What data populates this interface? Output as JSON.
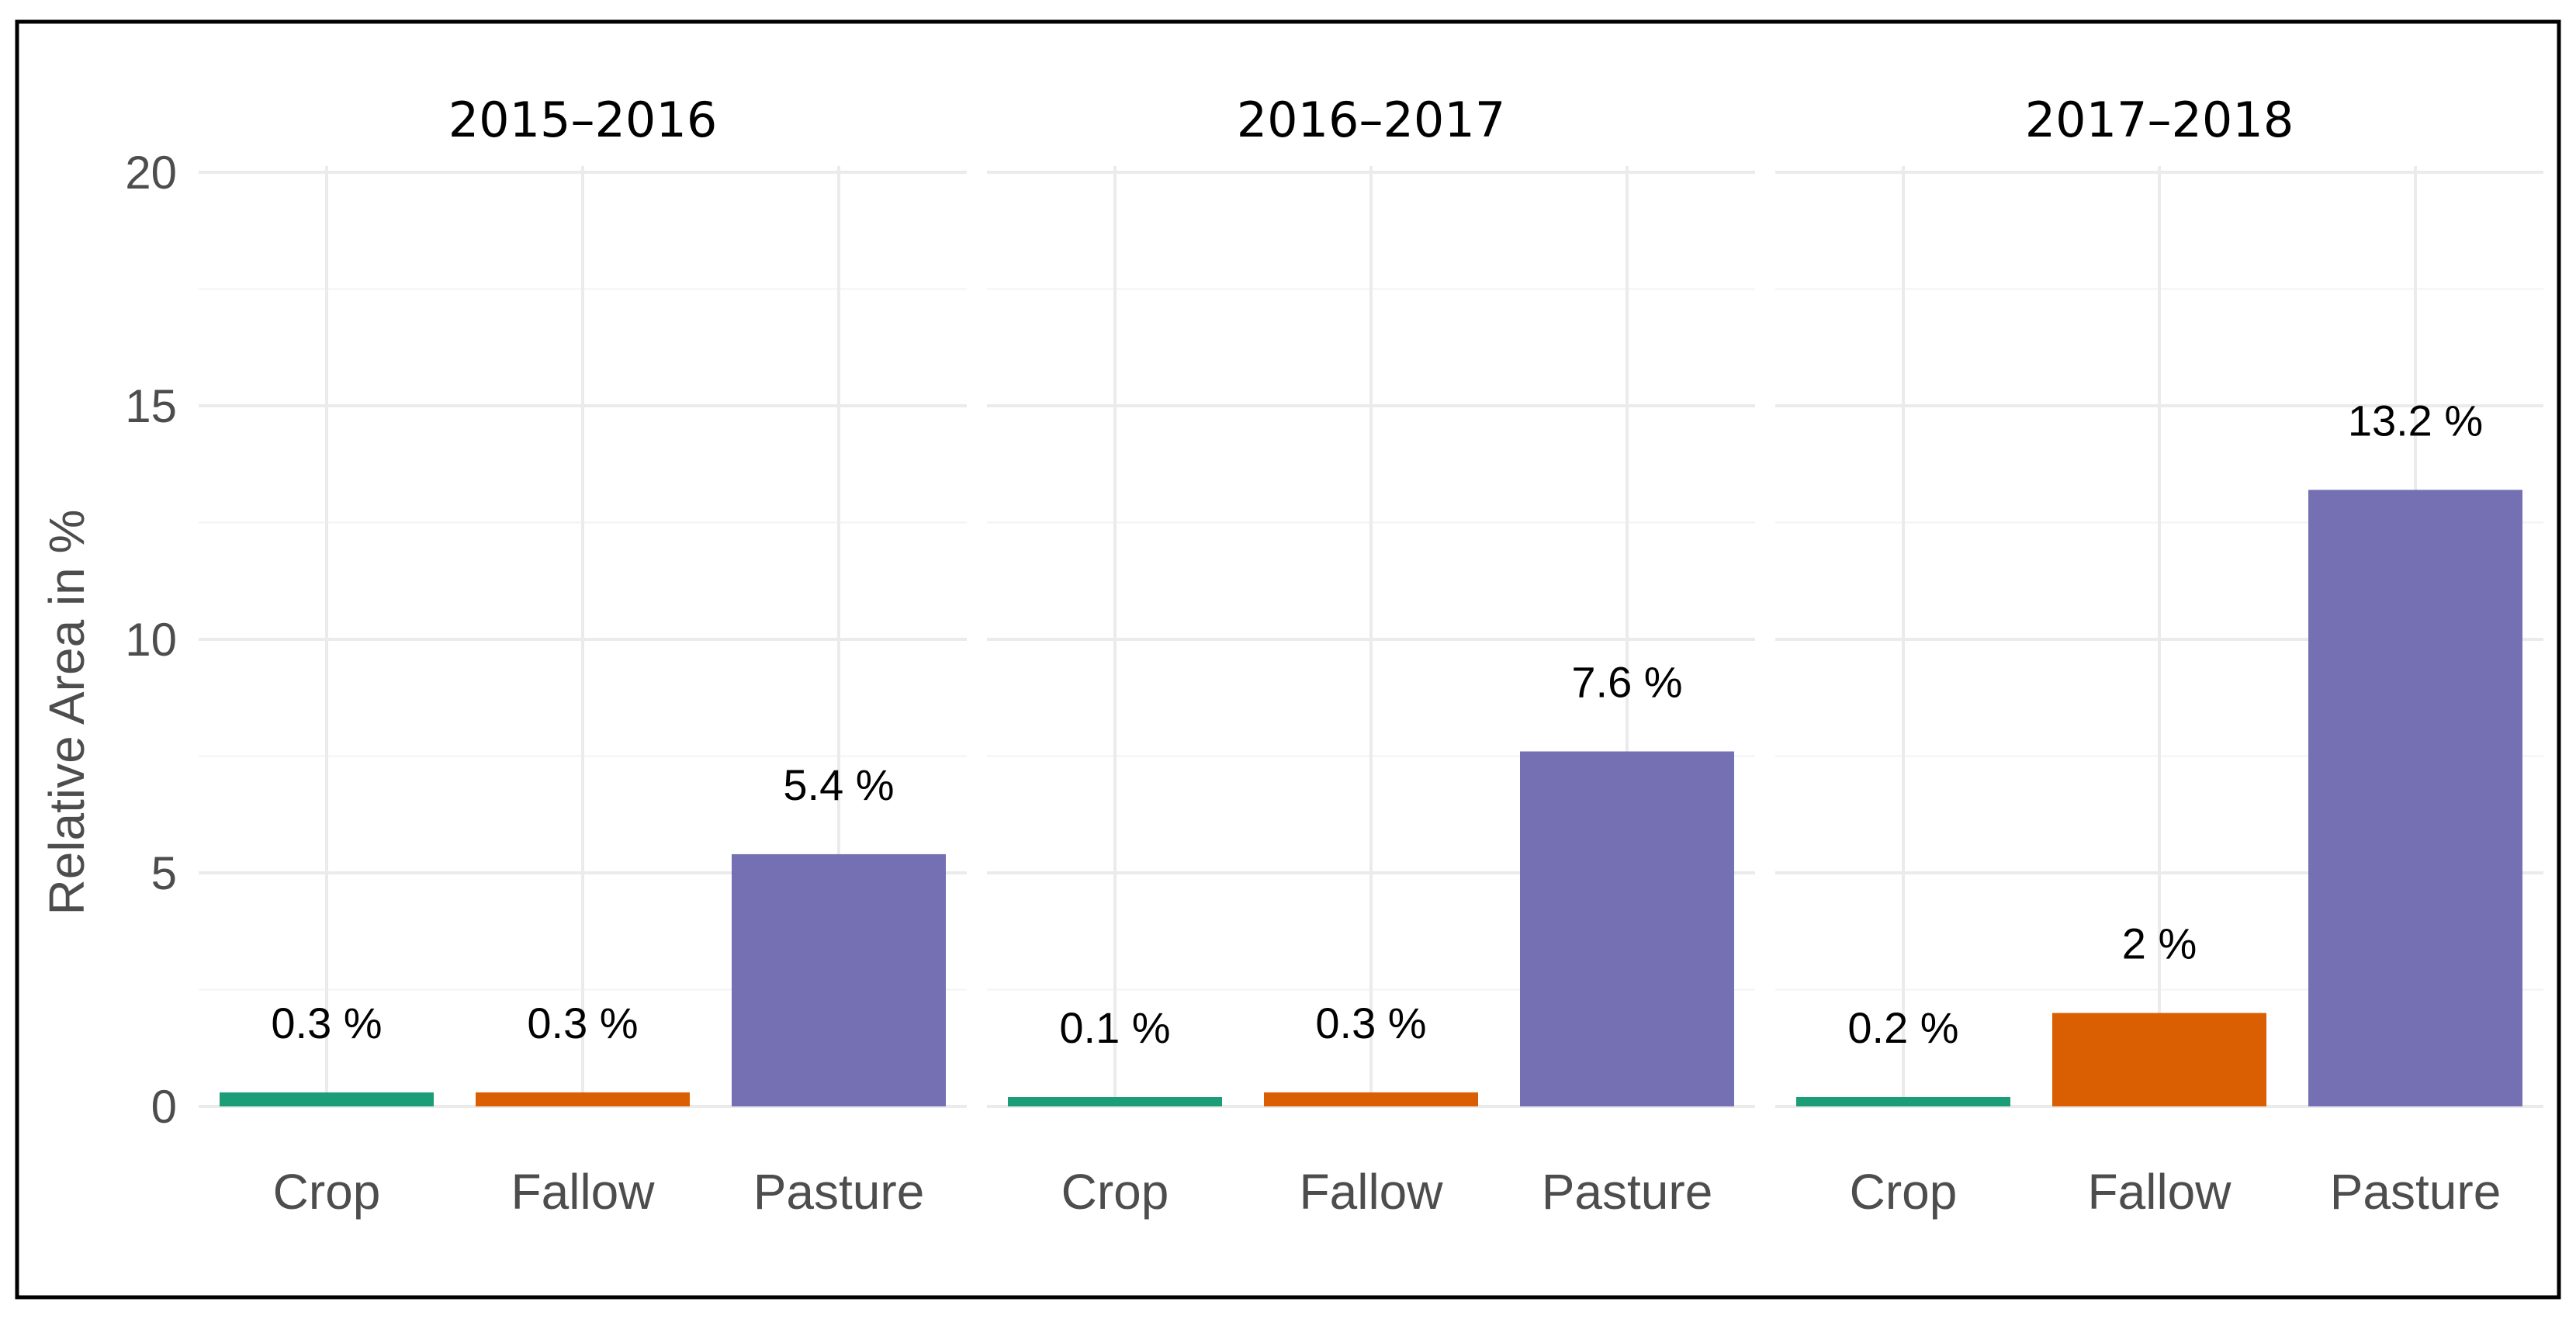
{
  "chart_data": {
    "type": "bar",
    "ylabel": "Relative Area in %",
    "xlabel": "",
    "ylim": [
      0,
      20
    ],
    "yticks": [
      0,
      5,
      10,
      15,
      20
    ],
    "grid": true,
    "legend": "none",
    "colors": {
      "Crop": "#1b9e77",
      "Fallow": "#d95f02",
      "Pasture": "#7570b3"
    },
    "panels": [
      {
        "title": "2015–2016",
        "categories": [
          "Crop",
          "Fallow",
          "Pasture"
        ],
        "values": [
          0.3,
          0.3,
          5.4
        ],
        "labels": [
          "0.3 %",
          "0.3 %",
          "5.4 %"
        ]
      },
      {
        "title": "2016–2017",
        "categories": [
          "Crop",
          "Fallow",
          "Pasture"
        ],
        "values": [
          0.1,
          0.3,
          7.6
        ],
        "labels": [
          "0.1 %",
          "0.3 %",
          "7.6 %"
        ]
      },
      {
        "title": "2017–2018",
        "categories": [
          "Crop",
          "Fallow",
          "Pasture"
        ],
        "values": [
          0.2,
          2.0,
          13.2
        ],
        "labels": [
          "0.2 %",
          "2 %",
          "13.2 %"
        ]
      }
    ]
  }
}
